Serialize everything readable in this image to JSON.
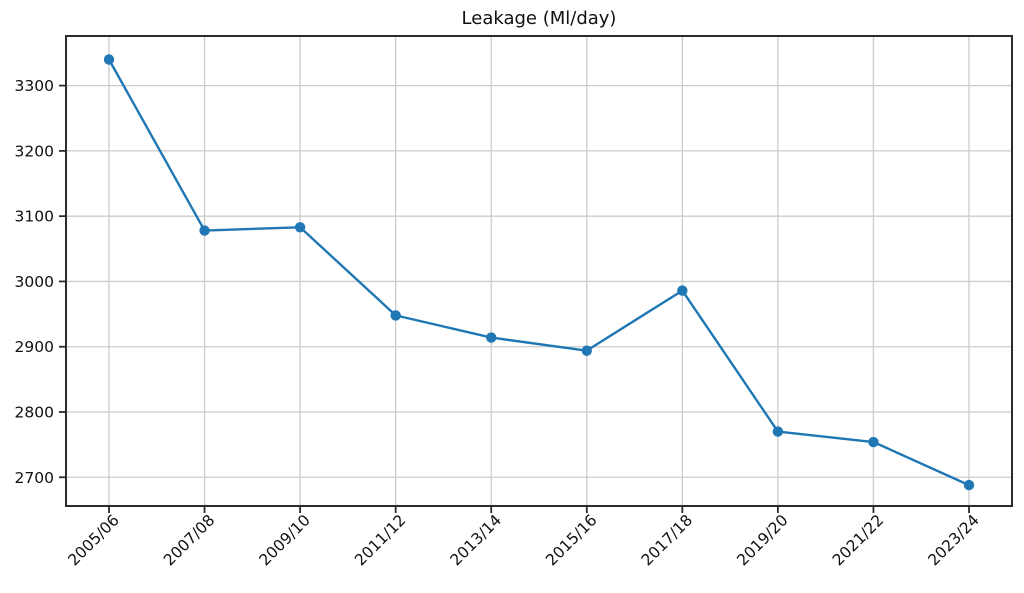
{
  "chart_data": {
    "type": "line",
    "title": "Leakage (Ml/day)",
    "categories": [
      "2005/06",
      "2007/08",
      "2009/10",
      "2011/12",
      "2013/14",
      "2015/16",
      "2017/18",
      "2019/20",
      "2021/22",
      "2023/24"
    ],
    "series": [
      {
        "name": "Leakage",
        "values": [
          3340,
          3078,
          3083,
          2948,
          2914,
          2894,
          2986,
          2770,
          2754,
          2688
        ],
        "color": "#1f77b4",
        "marker": "circle"
      }
    ],
    "xlabel": "",
    "ylabel": "",
    "ylim": [
      2656,
      3376
    ],
    "yticks": [
      2700,
      2800,
      2900,
      3000,
      3100,
      3200,
      3300
    ],
    "grid": true,
    "legend": "none",
    "styles": {
      "line_color": "#1f77b4",
      "marker_color": "#1f77b4",
      "grid_color": "#cccccc",
      "axis_color": "#2b2b2b",
      "text_color": "#111111",
      "background": "#ffffff"
    }
  }
}
